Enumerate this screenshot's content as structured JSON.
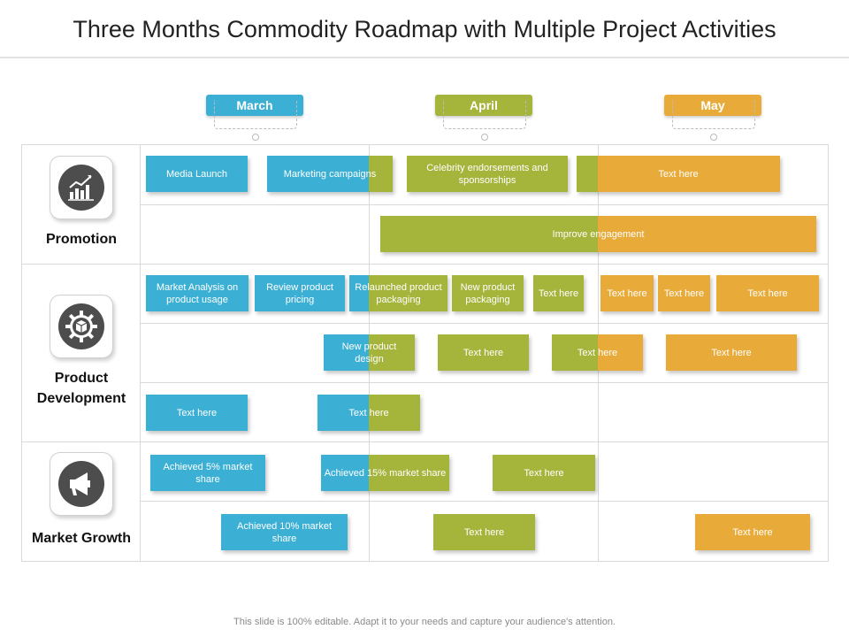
{
  "title": "Three Months Commodity Roadmap with Multiple Project Activities",
  "months": [
    {
      "label": "March",
      "color": "#3bafd4"
    },
    {
      "label": "April",
      "color": "#a5b43a"
    },
    {
      "label": "May",
      "color": "#e8ab3a"
    }
  ],
  "sections": [
    {
      "label": "Promotion",
      "icon": "chart-growth-icon"
    },
    {
      "label": "Product Development",
      "icon": "gear-box-icon"
    },
    {
      "label": "Market Growth",
      "icon": "megaphone-icon"
    }
  ],
  "activities": {
    "row1": [
      "Media Launch",
      "Marketing campaigns",
      "Celebrity endorsements and sponsorships",
      "Text here"
    ],
    "row2": [
      "Improve engagement"
    ],
    "row3": [
      "Market Analysis on product usage",
      "Review product pricing",
      "Relaunched product packaging",
      "New product packaging",
      "Text here",
      "Text here",
      "Text here",
      "Text here"
    ],
    "row4": [
      "New product design",
      "Text here",
      "Text here",
      "Text here"
    ],
    "row5": [
      "Text here",
      "Text here"
    ],
    "row6": [
      "Achieved 5% market share",
      "Achieved 15% market share",
      "Text here"
    ],
    "row7": [
      "Achieved 10% market share",
      "Text here",
      "Text here"
    ]
  },
  "colors": {
    "blue": "#3bafd4",
    "green": "#a5b43a",
    "orange": "#e8ab3a"
  },
  "footer": "This slide is 100% editable. Adapt it to your needs and capture your audience's attention."
}
